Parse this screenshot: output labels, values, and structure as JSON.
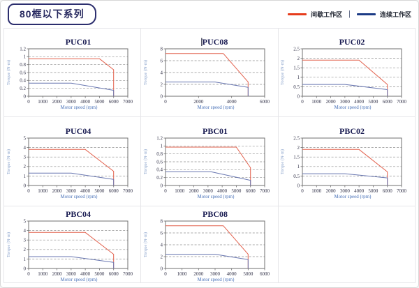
{
  "page": {
    "title": "80框以下系列"
  },
  "legend": {
    "items": [
      {
        "name": "intermittent-zone",
        "label": "间歇工作区",
        "color": "#e63c1c"
      },
      {
        "name": "continuous-zone",
        "label": "连续工作区",
        "color": "#1b3a85"
      }
    ],
    "separator": "|"
  },
  "axes": {
    "x_label": "Motor speed (rpm)",
    "y_label": "Torque (N·m)"
  },
  "colors": {
    "line_red": "#e2604c",
    "line_blue": "#6876b0",
    "title_text": "#1a1c52",
    "tick_text": "#34344a",
    "x_label_text": "#4a72b8",
    "y_label_text": "#87a0ca",
    "grid": "#8f8f8f",
    "plot_border": "#6f6f6f"
  },
  "chart_data": [
    {
      "type": "line",
      "title": "PUC01",
      "text_cursor": false,
      "xlabel": "Motor speed (rpm)",
      "ylabel": "Torque (N·m)",
      "xlim": [
        0,
        7000
      ],
      "ylim": [
        0,
        1.2
      ],
      "xticks": [
        0,
        1000,
        2000,
        3000,
        4000,
        5000,
        6000,
        7000
      ],
      "yticks": [
        0,
        0.2,
        0.4,
        0.6,
        0.8,
        1,
        1.2
      ],
      "series": [
        {
          "name": "间歇工作区",
          "color": "red",
          "points": [
            [
              0,
              0.95
            ],
            [
              5000,
              0.95
            ],
            [
              6000,
              0.67
            ],
            [
              6000,
              0
            ]
          ]
        },
        {
          "name": "连续工作区",
          "color": "blue",
          "points": [
            [
              0,
              0.33
            ],
            [
              3000,
              0.33
            ],
            [
              6000,
              0.15
            ],
            [
              6000,
              0
            ]
          ]
        }
      ]
    },
    {
      "type": "line",
      "title": "PUC08",
      "text_cursor": true,
      "xlabel": "Motor speed (rpm)",
      "ylabel": "Torque (N·m)",
      "xlim": [
        0,
        6000
      ],
      "ylim": [
        0,
        8
      ],
      "xticks": [
        0,
        2000,
        4000,
        6000
      ],
      "yticks": [
        0,
        2,
        4,
        6,
        8
      ],
      "series": [
        {
          "name": "间歇工作区",
          "color": "red",
          "points": [
            [
              0,
              7.2
            ],
            [
              3500,
              7.2
            ],
            [
              5000,
              2.4
            ],
            [
              5000,
              0
            ]
          ]
        },
        {
          "name": "连续工作区",
          "color": "blue",
          "points": [
            [
              0,
              2.4
            ],
            [
              3000,
              2.4
            ],
            [
              5000,
              1.5
            ],
            [
              5000,
              0
            ]
          ]
        }
      ]
    },
    {
      "type": "line",
      "title": "PUC02",
      "text_cursor": false,
      "xlabel": "Motor speed (rpm)",
      "ylabel": "Torque (N·m)",
      "xlim": [
        0,
        7000
      ],
      "ylim": [
        0,
        2.5
      ],
      "xticks": [
        0,
        1000,
        2000,
        3000,
        4000,
        5000,
        6000,
        7000
      ],
      "yticks": [
        0,
        0.5,
        1,
        1.5,
        2,
        2.5
      ],
      "series": [
        {
          "name": "间歇工作区",
          "color": "red",
          "points": [
            [
              0,
              1.9
            ],
            [
              4000,
              1.9
            ],
            [
              6000,
              0.62
            ],
            [
              6000,
              0
            ]
          ]
        },
        {
          "name": "连续工作区",
          "color": "blue",
          "points": [
            [
              0,
              0.62
            ],
            [
              3000,
              0.62
            ],
            [
              6000,
              0.35
            ],
            [
              6000,
              0
            ]
          ]
        }
      ]
    },
    {
      "type": "line",
      "title": "PUC04",
      "text_cursor": false,
      "xlabel": "Motor speed (rpm)",
      "ylabel": "Torque (N·m)",
      "xlim": [
        0,
        7000
      ],
      "ylim": [
        0,
        5
      ],
      "xticks": [
        0,
        1000,
        2000,
        3000,
        4000,
        5000,
        6000,
        7000
      ],
      "yticks": [
        0,
        1,
        2,
        3,
        4,
        5
      ],
      "series": [
        {
          "name": "间歇工作区",
          "color": "red",
          "points": [
            [
              0,
              3.8
            ],
            [
              4000,
              3.8
            ],
            [
              6000,
              1.5
            ],
            [
              6000,
              0
            ]
          ]
        },
        {
          "name": "连续工作区",
          "color": "blue",
          "points": [
            [
              0,
              1.3
            ],
            [
              3000,
              1.3
            ],
            [
              6000,
              0.65
            ],
            [
              6000,
              0
            ]
          ]
        }
      ]
    },
    {
      "type": "line",
      "title": "PBC01",
      "text_cursor": false,
      "xlabel": "Motor speed (rpm)",
      "ylabel": "Torque (N·m)",
      "xlim": [
        0,
        7000
      ],
      "ylim": [
        0,
        1.2
      ],
      "xticks": [
        0,
        1000,
        2000,
        3000,
        4000,
        5000,
        6000,
        7000
      ],
      "yticks": [
        0,
        0.2,
        0.4,
        0.6,
        0.8,
        1,
        1.2
      ],
      "series": [
        {
          "name": "间歇工作区",
          "color": "red",
          "points": [
            [
              0,
              0.97
            ],
            [
              5000,
              0.97
            ],
            [
              6000,
              0.45
            ],
            [
              6000,
              0
            ]
          ]
        },
        {
          "name": "连续工作区",
          "color": "blue",
          "points": [
            [
              0,
              0.35
            ],
            [
              3200,
              0.35
            ],
            [
              6000,
              0.13
            ],
            [
              6000,
              0
            ]
          ]
        }
      ]
    },
    {
      "type": "line",
      "title": "PBC02",
      "text_cursor": false,
      "xlabel": "Motor speed (rpm)",
      "ylabel": "Torque (N·m)",
      "xlim": [
        0,
        7000
      ],
      "ylim": [
        0,
        2.5
      ],
      "xticks": [
        0,
        1000,
        2000,
        3000,
        4000,
        5000,
        6000,
        7000
      ],
      "yticks": [
        0,
        0.5,
        1,
        1.5,
        2,
        2.5
      ],
      "series": [
        {
          "name": "间歇工作区",
          "color": "red",
          "points": [
            [
              0,
              1.9
            ],
            [
              4000,
              1.9
            ],
            [
              6000,
              0.72
            ],
            [
              6000,
              0
            ]
          ]
        },
        {
          "name": "连续工作区",
          "color": "blue",
          "points": [
            [
              0,
              0.62
            ],
            [
              3000,
              0.62
            ],
            [
              6000,
              0.4
            ],
            [
              6000,
              0
            ]
          ]
        }
      ]
    },
    {
      "type": "line",
      "title": "PBC04",
      "text_cursor": false,
      "xlabel": "Motor speed (rpm)",
      "ylabel": "Torque (N·m)",
      "xlim": [
        0,
        7000
      ],
      "ylim": [
        0,
        5
      ],
      "xticks": [
        0,
        1000,
        2000,
        3000,
        4000,
        5000,
        6000,
        7000
      ],
      "yticks": [
        0,
        1,
        2,
        3,
        4,
        5
      ],
      "series": [
        {
          "name": "间歇工作区",
          "color": "red",
          "points": [
            [
              0,
              3.8
            ],
            [
              4000,
              3.8
            ],
            [
              6000,
              1.5
            ],
            [
              6000,
              0
            ]
          ]
        },
        {
          "name": "连续工作区",
          "color": "blue",
          "points": [
            [
              0,
              1.25
            ],
            [
              3000,
              1.25
            ],
            [
              6000,
              0.65
            ],
            [
              6000,
              0
            ]
          ]
        }
      ]
    },
    {
      "type": "line",
      "title": "PBC08",
      "text_cursor": false,
      "xlabel": "Motor speed (rpm)",
      "ylabel": "Torque (N·m)",
      "xlim": [
        0,
        6000
      ],
      "ylim": [
        0,
        8
      ],
      "xticks": [
        0,
        1000,
        2000,
        3000,
        4000,
        5000,
        6000
      ],
      "yticks": [
        0,
        2,
        4,
        6,
        8
      ],
      "series": [
        {
          "name": "间歇工作区",
          "color": "red",
          "points": [
            [
              0,
              7.2
            ],
            [
              3500,
              7.2
            ],
            [
              5000,
              2.4
            ],
            [
              5000,
              0
            ]
          ]
        },
        {
          "name": "连续工作区",
          "color": "blue",
          "points": [
            [
              0,
              2.4
            ],
            [
              3000,
              2.4
            ],
            [
              5000,
              1.5
            ],
            [
              5000,
              0
            ]
          ]
        }
      ]
    }
  ]
}
